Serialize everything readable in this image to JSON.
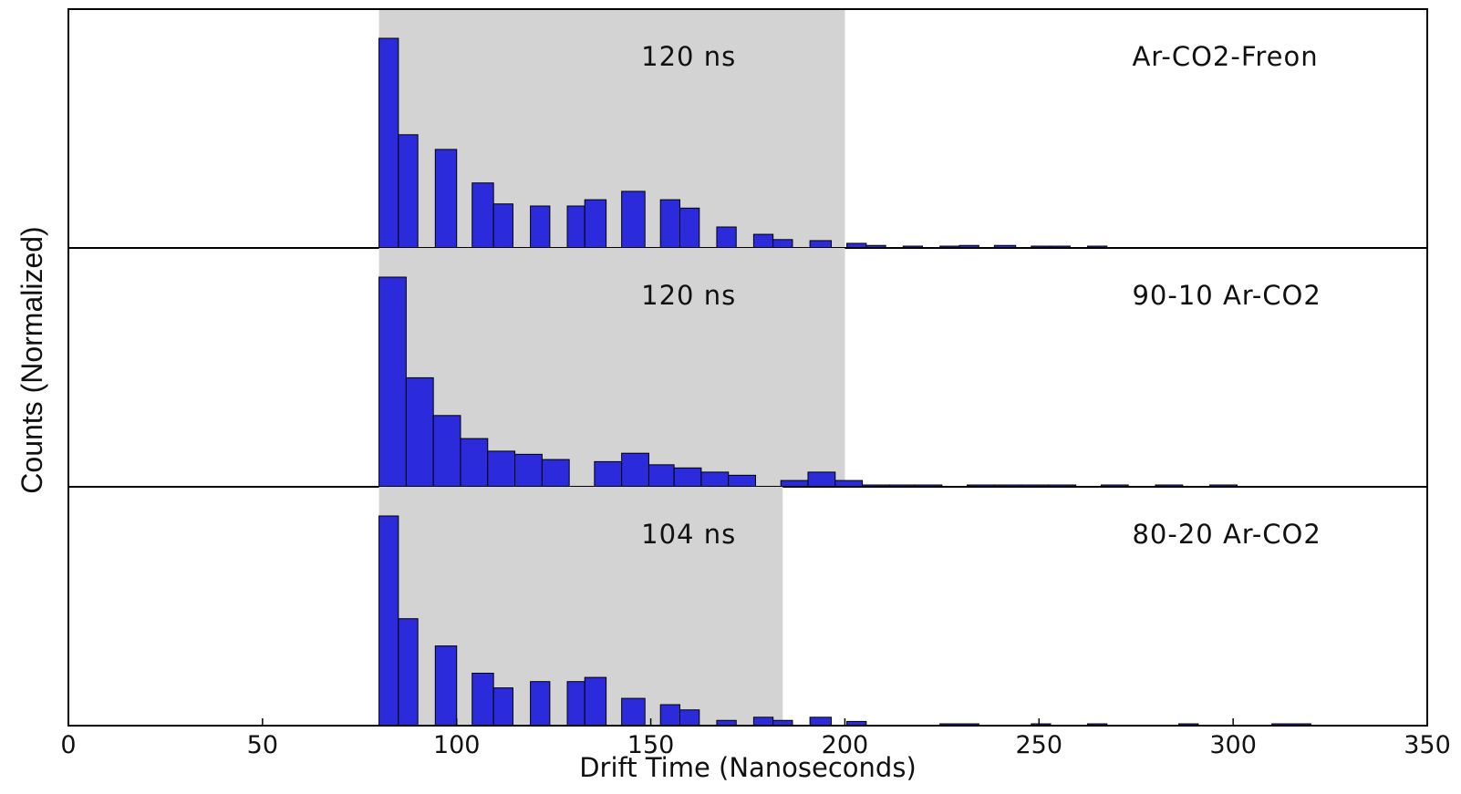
{
  "chart_data": {
    "type": "bar",
    "xlabel": "Drift Time (Nanoseconds)",
    "ylabel": "Counts (Normalized)",
    "xlim": [
      0,
      350
    ],
    "xticks": [
      0,
      50,
      100,
      150,
      200,
      250,
      300,
      350
    ],
    "bar_color": "#2b2bdc",
    "shade_color": "#d3d3d3",
    "panels": [
      {
        "label": "Ar-CO2-Freon",
        "window_label": "120 ns",
        "window": [
          80,
          200
        ],
        "bins": [
          {
            "x0": 80,
            "x1": 85,
            "y": 1.0
          },
          {
            "x0": 85,
            "x1": 90,
            "y": 0.54
          },
          {
            "x0": 94.5,
            "x1": 100,
            "y": 0.47
          },
          {
            "x0": 104,
            "x1": 109.5,
            "y": 0.31
          },
          {
            "x0": 109.5,
            "x1": 114.5,
            "y": 0.21
          },
          {
            "x0": 119,
            "x1": 124,
            "y": 0.2
          },
          {
            "x0": 128.5,
            "x1": 133,
            "y": 0.2
          },
          {
            "x0": 133,
            "x1": 138.5,
            "y": 0.23
          },
          {
            "x0": 142.5,
            "x1": 148.5,
            "y": 0.27
          },
          {
            "x0": 152.5,
            "x1": 157.5,
            "y": 0.23
          },
          {
            "x0": 157.5,
            "x1": 162.5,
            "y": 0.19
          },
          {
            "x0": 167,
            "x1": 172,
            "y": 0.1
          },
          {
            "x0": 176.5,
            "x1": 181.5,
            "y": 0.065
          },
          {
            "x0": 181.5,
            "x1": 186.5,
            "y": 0.04
          },
          {
            "x0": 191,
            "x1": 196.5,
            "y": 0.035
          },
          {
            "x0": 200.5,
            "x1": 205.5,
            "y": 0.022
          },
          {
            "x0": 205.5,
            "x1": 210.5,
            "y": 0.012
          },
          {
            "x0": 215,
            "x1": 220,
            "y": 0.006
          },
          {
            "x0": 224.5,
            "x1": 229.5,
            "y": 0.006
          },
          {
            "x0": 229.5,
            "x1": 234.5,
            "y": 0.012
          },
          {
            "x0": 238.5,
            "x1": 244,
            "y": 0.012
          },
          {
            "x0": 248,
            "x1": 253,
            "y": 0.006
          },
          {
            "x0": 253,
            "x1": 258,
            "y": 0.006
          },
          {
            "x0": 262.5,
            "x1": 267.5,
            "y": 0.006
          }
        ]
      },
      {
        "label": "90-10 Ar-CO2",
        "window_label": "120 ns",
        "window": [
          80,
          200
        ],
        "bins": [
          {
            "x0": 80,
            "x1": 87,
            "y": 1.0
          },
          {
            "x0": 87,
            "x1": 94,
            "y": 0.52
          },
          {
            "x0": 94,
            "x1": 101,
            "y": 0.34
          },
          {
            "x0": 101,
            "x1": 108,
            "y": 0.23
          },
          {
            "x0": 108,
            "x1": 115,
            "y": 0.17
          },
          {
            "x0": 115,
            "x1": 122,
            "y": 0.155
          },
          {
            "x0": 122,
            "x1": 129,
            "y": 0.13
          },
          {
            "x0": 135.5,
            "x1": 142.5,
            "y": 0.12
          },
          {
            "x0": 142.5,
            "x1": 149.5,
            "y": 0.16
          },
          {
            "x0": 149.5,
            "x1": 156,
            "y": 0.105
          },
          {
            "x0": 156,
            "x1": 163,
            "y": 0.09
          },
          {
            "x0": 163,
            "x1": 170,
            "y": 0.07
          },
          {
            "x0": 170,
            "x1": 177,
            "y": 0.055
          },
          {
            "x0": 183.5,
            "x1": 190.5,
            "y": 0.03
          },
          {
            "x0": 190.5,
            "x1": 197.5,
            "y": 0.07
          },
          {
            "x0": 197.5,
            "x1": 204.5,
            "y": 0.03
          },
          {
            "x0": 204.5,
            "x1": 211.5,
            "y": 0.006
          },
          {
            "x0": 211.5,
            "x1": 218,
            "y": 0.006
          },
          {
            "x0": 218,
            "x1": 225,
            "y": 0.006
          },
          {
            "x0": 231.5,
            "x1": 238.5,
            "y": 0.006
          },
          {
            "x0": 238.5,
            "x1": 245.5,
            "y": 0.006
          },
          {
            "x0": 245.5,
            "x1": 252.5,
            "y": 0.006
          },
          {
            "x0": 252.5,
            "x1": 259.5,
            "y": 0.006
          },
          {
            "x0": 266,
            "x1": 273,
            "y": 0.006
          },
          {
            "x0": 280,
            "x1": 287,
            "y": 0.006
          },
          {
            "x0": 294,
            "x1": 301,
            "y": 0.006
          }
        ]
      },
      {
        "label": "80-20 Ar-CO2",
        "window_label": "104 ns",
        "window": [
          80,
          184
        ],
        "bins": [
          {
            "x0": 80,
            "x1": 85,
            "y": 1.0
          },
          {
            "x0": 85,
            "x1": 90,
            "y": 0.51
          },
          {
            "x0": 94.5,
            "x1": 100,
            "y": 0.38
          },
          {
            "x0": 104,
            "x1": 109.5,
            "y": 0.25
          },
          {
            "x0": 109.5,
            "x1": 114.5,
            "y": 0.18
          },
          {
            "x0": 119,
            "x1": 124,
            "y": 0.21
          },
          {
            "x0": 128.5,
            "x1": 133,
            "y": 0.21
          },
          {
            "x0": 133,
            "x1": 138.5,
            "y": 0.23
          },
          {
            "x0": 142.5,
            "x1": 148.5,
            "y": 0.13
          },
          {
            "x0": 152.5,
            "x1": 157.5,
            "y": 0.1
          },
          {
            "x0": 157.5,
            "x1": 162.5,
            "y": 0.075
          },
          {
            "x0": 167,
            "x1": 172,
            "y": 0.025
          },
          {
            "x0": 176.5,
            "x1": 181.5,
            "y": 0.04
          },
          {
            "x0": 181.5,
            "x1": 186.5,
            "y": 0.025
          },
          {
            "x0": 191,
            "x1": 196.5,
            "y": 0.04
          },
          {
            "x0": 200.5,
            "x1": 205.5,
            "y": 0.02
          },
          {
            "x0": 224.5,
            "x1": 234.5,
            "y": 0.006
          },
          {
            "x0": 248,
            "x1": 253,
            "y": 0.006
          },
          {
            "x0": 262.5,
            "x1": 267.5,
            "y": 0.006
          },
          {
            "x0": 286,
            "x1": 291,
            "y": 0.006
          },
          {
            "x0": 310,
            "x1": 320,
            "y": 0.006
          }
        ]
      }
    ]
  }
}
